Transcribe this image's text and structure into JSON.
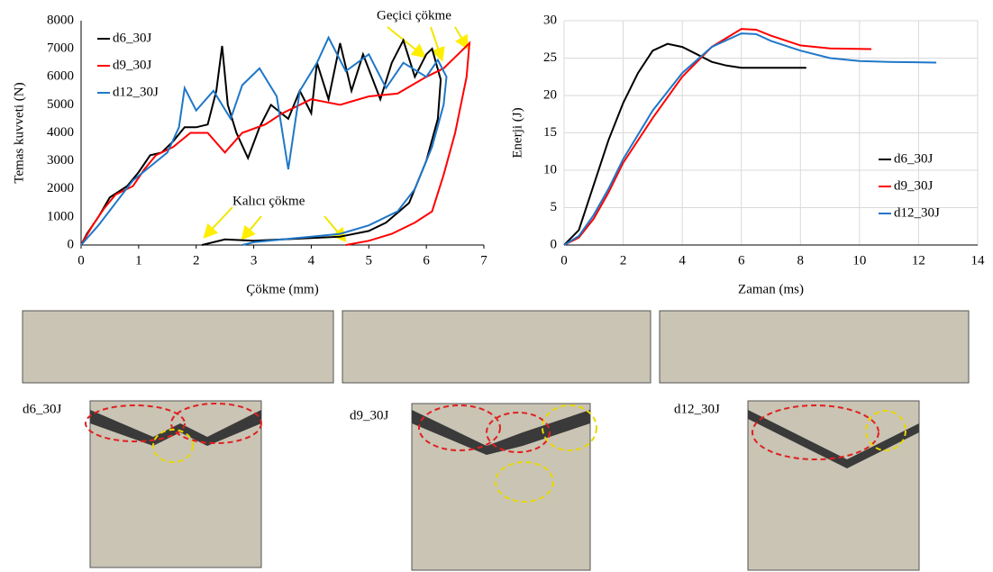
{
  "chart_data": [
    {
      "type": "line",
      "ylabel": "Temas kuvveti (N)",
      "xlabel": "Çökme (mm)",
      "xlim": [
        0,
        7
      ],
      "xticks": [
        0,
        1,
        2,
        3,
        4,
        5,
        6,
        7
      ],
      "ylim": [
        0,
        8000
      ],
      "yticks": [
        0,
        1000,
        2000,
        3000,
        4000,
        5000,
        6000,
        7000,
        8000
      ],
      "grid": false,
      "legend": "upper left",
      "annotations": [
        "Geçici çökme",
        "Kalıcı çökme"
      ],
      "series": [
        {
          "name": "d6_30J",
          "color": "#000000",
          "x": [
            0,
            0.1,
            0.3,
            0.5,
            0.8,
            1,
            1.2,
            1.4,
            1.6,
            1.8,
            2.0,
            2.2,
            2.35,
            2.45,
            2.55,
            2.7,
            2.9,
            3.1,
            3.3,
            3.6,
            3.8,
            4.0,
            4.1,
            4.3,
            4.5,
            4.7,
            4.9,
            5.2,
            5.4,
            5.6,
            5.8,
            6.0,
            6.1,
            6.25,
            6.2,
            6.0,
            5.7,
            5.3,
            5.0,
            4.5,
            4.0,
            3.5,
            3.0,
            2.5,
            2.1
          ],
          "values": [
            0,
            400,
            1000,
            1700,
            2100,
            2600,
            3200,
            3300,
            3700,
            4200,
            4200,
            4300,
            5500,
            7100,
            5000,
            4000,
            3100,
            4200,
            5000,
            4500,
            5500,
            4700,
            6500,
            5200,
            7200,
            5500,
            6800,
            5200,
            6500,
            7300,
            6000,
            6800,
            7000,
            5900,
            4500,
            3000,
            1500,
            800,
            500,
            300,
            250,
            200,
            150,
            200,
            0
          ]
        },
        {
          "name": "d9_30J",
          "color": "#ff0000",
          "x": [
            0,
            0.2,
            0.4,
            0.6,
            0.9,
            1.1,
            1.3,
            1.6,
            1.9,
            2.2,
            2.5,
            2.8,
            3.2,
            3.5,
            4.0,
            4.5,
            5.0,
            5.5,
            6.0,
            6.3,
            6.6,
            6.75,
            6.7,
            6.5,
            6.3,
            6.1,
            5.8,
            5.4,
            5.0,
            4.6
          ],
          "values": [
            0,
            700,
            1300,
            1800,
            2100,
            2700,
            3200,
            3500,
            4000,
            4000,
            3300,
            4000,
            4300,
            4700,
            5200,
            5000,
            5300,
            5400,
            6000,
            6300,
            6900,
            7200,
            6000,
            4000,
            2500,
            1200,
            800,
            400,
            150,
            0
          ]
        },
        {
          "name": "d12_30J",
          "color": "#1f77c8",
          "x": [
            0,
            0.3,
            0.6,
            0.9,
            1.2,
            1.5,
            1.7,
            1.8,
            2.0,
            2.3,
            2.6,
            2.8,
            3.1,
            3.4,
            3.6,
            3.8,
            4.1,
            4.3,
            4.6,
            5.0,
            5.3,
            5.6,
            6.0,
            6.2,
            6.35,
            6.3,
            6.1,
            5.8,
            5.5,
            5.0,
            4.5,
            4.0,
            3.5,
            3.0,
            2.8
          ],
          "values": [
            0,
            700,
            1500,
            2300,
            2800,
            3300,
            4200,
            5600,
            4800,
            5500,
            4500,
            5700,
            6300,
            5300,
            2700,
            5500,
            6500,
            7400,
            6200,
            6800,
            5600,
            6500,
            6000,
            6600,
            6000,
            5000,
            3500,
            2000,
            1200,
            700,
            400,
            300,
            200,
            100,
            0
          ]
        }
      ]
    },
    {
      "type": "line",
      "ylabel": "Enerji (J)",
      "xlabel": "Zaman (ms)",
      "xlim": [
        0,
        14
      ],
      "xticks": [
        0,
        2,
        4,
        6,
        8,
        10,
        12,
        14
      ],
      "ylim": [
        0,
        30
      ],
      "yticks": [
        0,
        5,
        10,
        15,
        20,
        25,
        30
      ],
      "grid": true,
      "legend": "lower right",
      "series": [
        {
          "name": "d6_30J",
          "color": "#000000",
          "x": [
            0,
            0.5,
            1,
            1.5,
            2,
            2.5,
            3,
            3.5,
            4,
            4.5,
            5,
            5.5,
            6,
            7,
            8.2
          ],
          "values": [
            0,
            2,
            8,
            14,
            19,
            23,
            26,
            26.9,
            26.5,
            25.5,
            24.5,
            24,
            23.7,
            23.7,
            23.7
          ]
        },
        {
          "name": "d9_30J",
          "color": "#ff0000",
          "x": [
            0,
            0.5,
            1,
            1.5,
            2,
            3,
            4,
            5,
            6,
            6.5,
            7,
            8,
            9,
            10.4
          ],
          "values": [
            0,
            1,
            3.5,
            7,
            11,
            17,
            22.5,
            26.5,
            28.9,
            28.8,
            28,
            26.7,
            26.3,
            26.2
          ]
        },
        {
          "name": "d12_30J",
          "color": "#1f77c8",
          "x": [
            0,
            0.5,
            1,
            1.5,
            2,
            3,
            4,
            5,
            6,
            6.5,
            7,
            8,
            9,
            10,
            11,
            12.6
          ],
          "values": [
            0,
            1.2,
            4,
            7.5,
            11.5,
            18,
            23,
            26.5,
            28.3,
            28.2,
            27.3,
            26,
            25,
            24.6,
            24.5,
            24.4
          ]
        }
      ]
    }
  ],
  "panels": [
    {
      "label": "d6_30J"
    },
    {
      "label": "d9_30J"
    },
    {
      "label": "d12_30J"
    }
  ]
}
